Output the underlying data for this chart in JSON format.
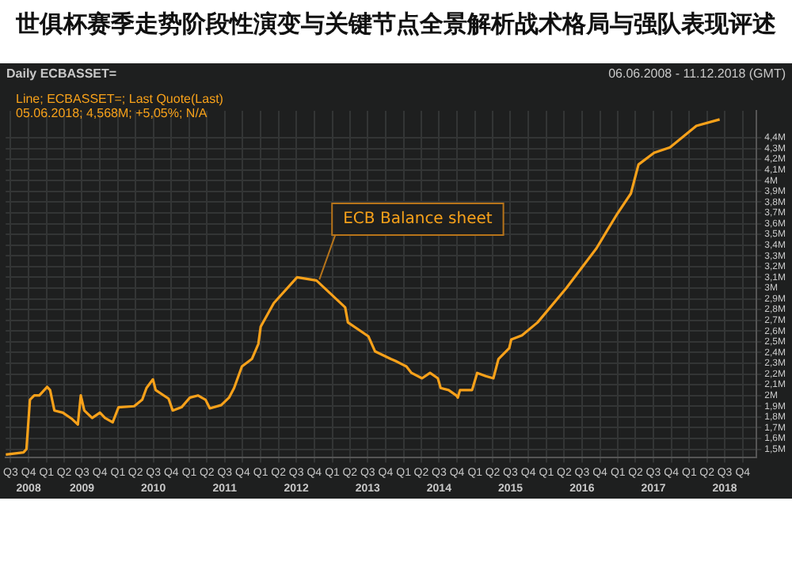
{
  "chart_data": {
    "type": "line",
    "title": "世俱杯赛季走势阶段性演变与关键节点全景解析战术格局与强队表现评述",
    "annotations": [
      "Daily ECBASSET=",
      "06.06.2008 - 11.12.2018 (GMT)",
      "Line; ECBASSET=; Last Quote(Last)",
      "05.06.2018; 4,568M; +5,05%; N/A",
      {
        "text": "ECB Balance sheet",
        "x": "2012-10-27",
        "y": 3.08
      }
    ],
    "series": [
      {
        "color": "#f7a11a",
        "x": [
          "2008-06-06",
          "2008-09-05",
          "2008-09-20",
          "2008-10-08",
          "2008-10-30",
          "2008-11-25",
          "2009-01-04",
          "2009-01-19",
          "2009-02-10",
          "2009-03-25",
          "2009-05-12",
          "2009-06-10",
          "2009-06-25",
          "2009-07-13",
          "2009-08-22",
          "2009-10-01",
          "2009-10-27",
          "2009-12-05",
          "2010-01-04",
          "2010-03-25",
          "2010-05-05",
          "2010-05-27",
          "2010-06-29",
          "2010-07-13",
          "2010-09-17",
          "2010-10-08",
          "2010-11-22",
          "2011-01-04",
          "2011-02-14",
          "2011-03-25",
          "2011-04-16",
          "2011-06-13",
          "2011-07-23",
          "2011-08-18",
          "2011-09-27",
          "2011-11-17",
          "2011-12-20",
          "2012-01-01",
          "2012-03-08",
          "2012-07-05",
          "2012-10-12",
          "2013-03-08",
          "2013-03-22",
          "2013-07-05",
          "2013-08-08",
          "2013-10-27",
          "2013-11-22",
          "2014-01-15",
          "2014-02-10",
          "2014-04-05",
          "2014-05-16",
          "2014-06-25",
          "2014-07-09",
          "2014-08-19",
          "2014-09-27",
          "2014-10-05",
          "2014-10-16",
          "2014-12-17",
          "2015-01-12",
          "2015-02-25",
          "2015-04-05",
          "2015-05-01",
          "2015-06-25",
          "2015-07-05",
          "2015-08-29",
          "2015-11-17",
          "2016-04-12",
          "2016-09-13",
          "2016-12-28",
          "2017-03-08",
          "2017-04-16",
          "2017-07-05",
          "2017-09-24",
          "2018-02-06",
          "2018-06-05"
        ],
        "values": [
          1.45,
          1.47,
          1.5,
          1.96,
          2.0,
          2.0,
          2.08,
          2.05,
          1.86,
          1.84,
          1.78,
          1.73,
          2.0,
          1.86,
          1.79,
          1.84,
          1.79,
          1.75,
          1.89,
          1.9,
          1.96,
          2.07,
          2.15,
          2.05,
          1.97,
          1.86,
          1.89,
          1.98,
          2.0,
          1.96,
          1.88,
          1.91,
          1.98,
          2.07,
          2.27,
          2.34,
          2.48,
          2.64,
          2.86,
          3.1,
          3.07,
          2.82,
          2.68,
          2.55,
          2.41,
          2.34,
          2.32,
          2.27,
          2.21,
          2.16,
          2.21,
          2.16,
          2.07,
          2.05,
          2.0,
          1.98,
          2.05,
          2.05,
          2.21,
          2.18,
          2.16,
          2.34,
          2.44,
          2.52,
          2.56,
          2.68,
          3.0,
          3.37,
          3.69,
          3.88,
          4.15,
          4.26,
          4.31,
          4.51,
          4.57
        ]
      }
    ],
    "xlim": [
      "2008-06-06",
      "2018-12-11"
    ],
    "xticks": [
      {
        "value": "2008-07-01",
        "label": "Q3"
      },
      {
        "value": "2008-10-01",
        "label": "Q4"
      },
      {
        "value": "2009-01-01",
        "label": "Q1"
      },
      {
        "value": "2009-04-01",
        "label": "Q2"
      },
      {
        "value": "2009-07-01",
        "label": "Q3"
      },
      {
        "value": "2009-10-01",
        "label": "Q4"
      },
      {
        "value": "2010-01-01",
        "label": "Q1"
      },
      {
        "value": "2010-04-01",
        "label": "Q2"
      },
      {
        "value": "2010-07-01",
        "label": "Q3"
      },
      {
        "value": "2010-10-01",
        "label": "Q4"
      },
      {
        "value": "2011-01-01",
        "label": "Q1"
      },
      {
        "value": "2011-04-01",
        "label": "Q2"
      },
      {
        "value": "2011-07-01",
        "label": "Q3"
      },
      {
        "value": "2011-10-01",
        "label": "Q4"
      },
      {
        "value": "2012-01-01",
        "label": "Q1"
      },
      {
        "value": "2012-04-01",
        "label": "Q2"
      },
      {
        "value": "2012-07-01",
        "label": "Q3"
      },
      {
        "value": "2012-10-01",
        "label": "Q4"
      },
      {
        "value": "2013-01-01",
        "label": "Q1"
      },
      {
        "value": "2013-04-01",
        "label": "Q2"
      },
      {
        "value": "2013-07-01",
        "label": "Q3"
      },
      {
        "value": "2013-10-01",
        "label": "Q4"
      },
      {
        "value": "2014-01-01",
        "label": "Q1"
      },
      {
        "value": "2014-04-01",
        "label": "Q2"
      },
      {
        "value": "2014-07-01",
        "label": "Q3"
      },
      {
        "value": "2014-10-01",
        "label": "Q4"
      },
      {
        "value": "2015-01-01",
        "label": "Q1"
      },
      {
        "value": "2015-04-01",
        "label": "Q2"
      },
      {
        "value": "2015-07-01",
        "label": "Q3"
      },
      {
        "value": "2015-10-01",
        "label": "Q4"
      },
      {
        "value": "2016-01-01",
        "label": "Q1"
      },
      {
        "value": "2016-04-01",
        "label": "Q2"
      },
      {
        "value": "2016-07-01",
        "label": "Q3"
      },
      {
        "value": "2016-10-01",
        "label": "Q4"
      },
      {
        "value": "2017-01-01",
        "label": "Q1"
      },
      {
        "value": "2017-04-01",
        "label": "Q2"
      },
      {
        "value": "2017-07-01",
        "label": "Q3"
      },
      {
        "value": "2017-10-01",
        "label": "Q4"
      },
      {
        "value": "2018-01-01",
        "label": "Q1"
      },
      {
        "value": "2018-04-01",
        "label": "Q2"
      },
      {
        "value": "2018-07-01",
        "label": "Q3"
      },
      {
        "value": "2018-10-01",
        "label": "Q4"
      }
    ],
    "x2lim": [
      "2008-06-06",
      "2018-12-11"
    ],
    "x2ticks": [
      {
        "value": "2008-10-01",
        "label": "2008"
      },
      {
        "value": "2009-07-01",
        "label": "2009"
      },
      {
        "value": "2010-07-01",
        "label": "2010"
      },
      {
        "value": "2011-07-01",
        "label": "2011"
      },
      {
        "value": "2012-07-01",
        "label": "2012"
      },
      {
        "value": "2013-07-01",
        "label": "2013"
      },
      {
        "value": "2014-07-01",
        "label": "2014"
      },
      {
        "value": "2015-07-01",
        "label": "2015"
      },
      {
        "value": "2016-07-01",
        "label": "2016"
      },
      {
        "value": "2017-07-01",
        "label": "2017"
      },
      {
        "value": "2018-07-01",
        "label": "2018"
      }
    ],
    "ylim": [
      1.42,
      4.65
    ],
    "yticks": [
      {
        "value": 1.5,
        "label": "1,5M"
      },
      {
        "value": 1.6,
        "label": "1,6M"
      },
      {
        "value": 1.7,
        "label": "1,7M"
      },
      {
        "value": 1.8,
        "label": "1,8M"
      },
      {
        "value": 1.9,
        "label": "1,9M"
      },
      {
        "value": 2,
        "label": "2M"
      },
      {
        "value": 2.1,
        "label": "2,1M"
      },
      {
        "value": 2.2,
        "label": "2,2M"
      },
      {
        "value": 2.3,
        "label": "2,3M"
      },
      {
        "value": 2.4,
        "label": "2,4M"
      },
      {
        "value": 2.5,
        "label": "2,5M"
      },
      {
        "value": 2.6,
        "label": "2,6M"
      },
      {
        "value": 2.7,
        "label": "2,7M"
      },
      {
        "value": 2.8,
        "label": "2,8M"
      },
      {
        "value": 2.9,
        "label": "2,9M"
      },
      {
        "value": 3,
        "label": "3M"
      },
      {
        "value": 3.1,
        "label": "3,1M"
      },
      {
        "value": 3.2,
        "label": "3,2M"
      },
      {
        "value": 3.3,
        "label": "3,3M"
      },
      {
        "value": 3.4,
        "label": "3,4M"
      },
      {
        "value": 3.5,
        "label": "3,5M"
      },
      {
        "value": 3.6,
        "label": "3,6M"
      },
      {
        "value": 3.7,
        "label": "3,7M"
      },
      {
        "value": 3.8,
        "label": "3,8M"
      },
      {
        "value": 3.9,
        "label": "3,9M"
      },
      {
        "value": 4,
        "label": "4M"
      },
      {
        "value": 4.1,
        "label": "4,1M"
      },
      {
        "value": 4.2,
        "label": "4,2M"
      },
      {
        "value": 4.3,
        "label": "4,3M"
      },
      {
        "value": 4.4,
        "label": "4,4M"
      }
    ],
    "grid": true,
    "marker": "none",
    "line_style": "solid"
  }
}
